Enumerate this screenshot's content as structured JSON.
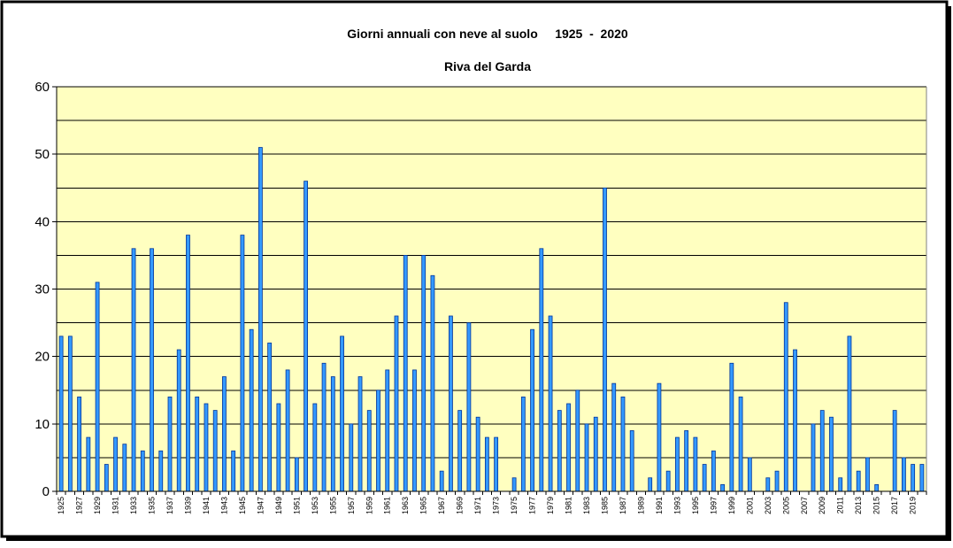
{
  "chart_data": {
    "type": "bar",
    "title": "Giorni annuali con neve al suolo     1925  -  2020",
    "subtitle": "Riva del Garda",
    "xlabel": "",
    "ylabel": "",
    "ylim": [
      0,
      60
    ],
    "yticks": [
      0,
      10,
      20,
      30,
      40,
      50,
      60
    ],
    "grid": true,
    "legend": "none",
    "colors": {
      "plot_background": "#ffffc0",
      "bar_fill": "#3399ff",
      "bar_edge": "#003399",
      "border": "#000000"
    },
    "categories": [
      "1925",
      "1926",
      "1927",
      "1928",
      "1929",
      "1930",
      "1931",
      "1932",
      "1933",
      "1934",
      "1935",
      "1936",
      "1937",
      "1938",
      "1939",
      "1940",
      "1941",
      "1942",
      "1943",
      "1944",
      "1945",
      "1946",
      "1947",
      "1948",
      "1949",
      "1950",
      "1951",
      "1952",
      "1953",
      "1954",
      "1955",
      "1956",
      "1957",
      "1958",
      "1959",
      "1960",
      "1961",
      "1962",
      "1963",
      "1964",
      "1965",
      "1966",
      "1967",
      "1968",
      "1969",
      "1970",
      "1971",
      "1972",
      "1973",
      "1974",
      "1975",
      "1976",
      "1977",
      "1978",
      "1979",
      "1980",
      "1981",
      "1982",
      "1983",
      "1984",
      "1985",
      "1986",
      "1987",
      "1988",
      "1989",
      "1990",
      "1991",
      "1992",
      "1993",
      "1994",
      "1995",
      "1996",
      "1997",
      "1998",
      "1999",
      "2000",
      "2001",
      "2002",
      "2003",
      "2004",
      "2005",
      "2006",
      "2007",
      "2008",
      "2009",
      "2010",
      "2011",
      "2012",
      "2013",
      "2014",
      "2015",
      "2016",
      "2017",
      "2018",
      "2019",
      "2020"
    ],
    "tick_labels": [
      "1925",
      "1927",
      "1929",
      "1931",
      "1933",
      "1935",
      "1937",
      "1939",
      "1941",
      "1943",
      "1945",
      "1947",
      "1949",
      "1951",
      "1953",
      "1955",
      "1957",
      "1959",
      "1961",
      "1963",
      "1965",
      "1967",
      "1969",
      "1971",
      "1973",
      "1975",
      "1977",
      "1979",
      "1981",
      "1983",
      "1985",
      "1987",
      "1989",
      "1991",
      "1993",
      "1995",
      "1997",
      "1999",
      "2001",
      "2003",
      "2005",
      "2007",
      "2009",
      "2011",
      "2013",
      "2015",
      "2017",
      "2019"
    ],
    "values": [
      23,
      23,
      14,
      8,
      31,
      4,
      8,
      7,
      36,
      6,
      36,
      6,
      14,
      21,
      38,
      14,
      13,
      12,
      17,
      6,
      38,
      24,
      51,
      22,
      13,
      18,
      5,
      46,
      13,
      19,
      17,
      23,
      10,
      17,
      12,
      15,
      18,
      26,
      35,
      18,
      35,
      32,
      3,
      26,
      12,
      25,
      11,
      8,
      8,
      0,
      2,
      14,
      24,
      36,
      26,
      12,
      13,
      15,
      10,
      11,
      45,
      16,
      14,
      9,
      0,
      2,
      16,
      3,
      8,
      9,
      8,
      4,
      6,
      1,
      19,
      14,
      5,
      0,
      2,
      3,
      28,
      21,
      0,
      10,
      12,
      11,
      2,
      23,
      3,
      5,
      1,
      0,
      12,
      5,
      4,
      4
    ]
  }
}
